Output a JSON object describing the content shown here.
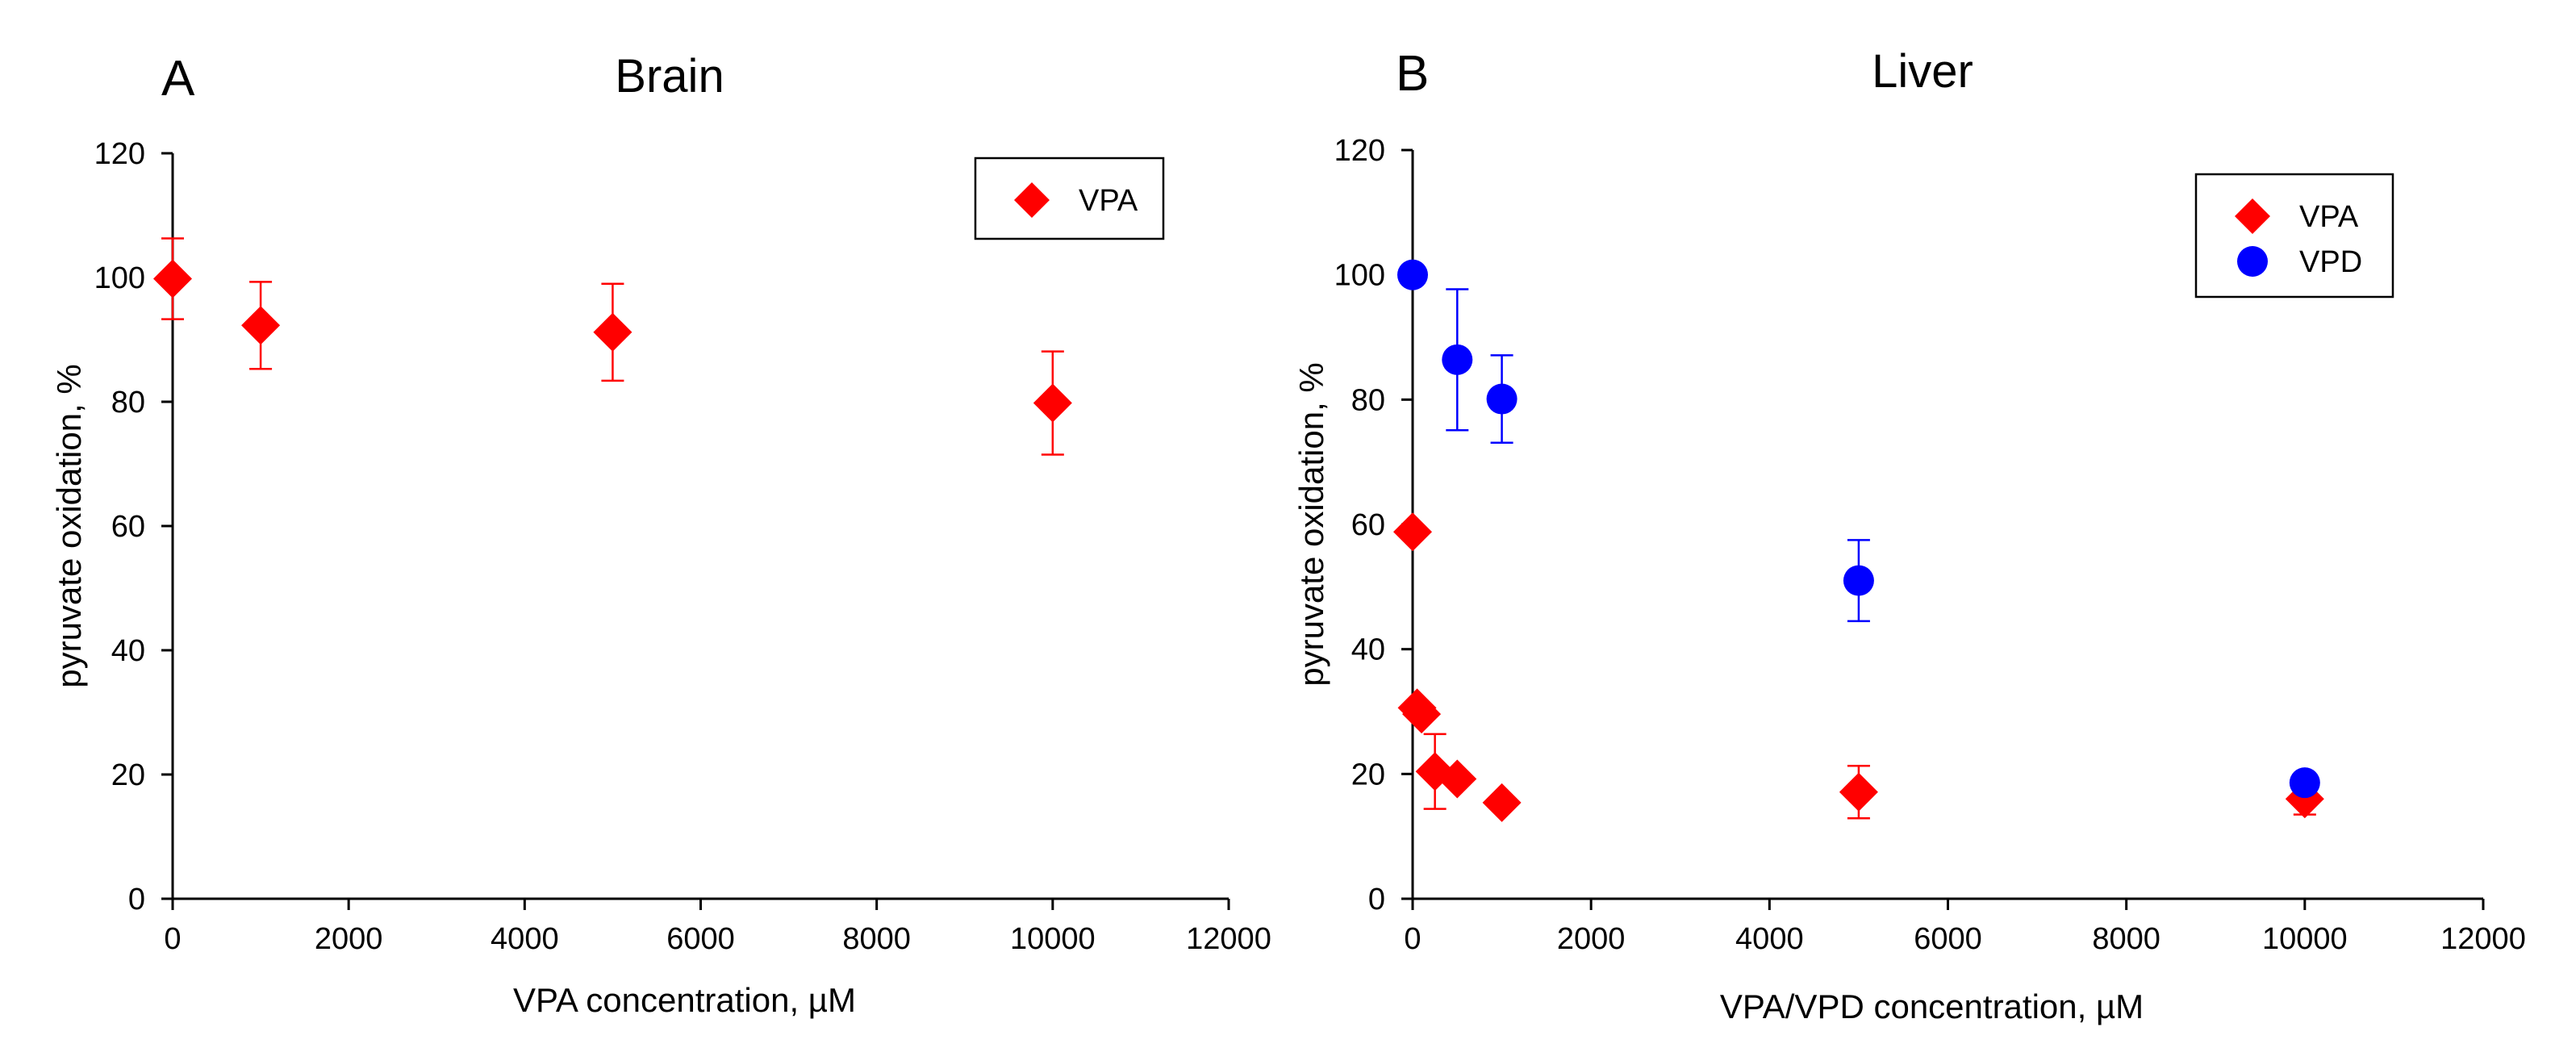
{
  "chart_data": [
    {
      "type": "scatter",
      "panel_letter": "A",
      "title": "Brain",
      "xlabel": "VPA concentration, µM",
      "ylabel": "pyruvate oxidation, %",
      "xlim": [
        0,
        12000
      ],
      "ylim": [
        0,
        120
      ],
      "xticks": [
        0,
        2000,
        4000,
        6000,
        8000,
        10000,
        12000
      ],
      "yticks": [
        0,
        20,
        40,
        60,
        80,
        100,
        120
      ],
      "legend_position": "top-right",
      "series": [
        {
          "name": "VPA",
          "marker": "diamond",
          "color": "#ff0000",
          "points": [
            {
              "x": 0,
              "y": 99.8,
              "err": 6.5
            },
            {
              "x": 1000,
              "y": 92.3,
              "err": 7.0
            },
            {
              "x": 5000,
              "y": 91.2,
              "err": 7.8
            },
            {
              "x": 10000,
              "y": 79.8,
              "err": 8.3
            }
          ]
        }
      ]
    },
    {
      "type": "scatter",
      "panel_letter": "B",
      "title": "Liver",
      "xlabel": "VPA/VPD concentration, µM",
      "ylabel": "pyruvate oxidation, %",
      "xlim": [
        0,
        12000
      ],
      "ylim": [
        0,
        120
      ],
      "xticks": [
        0,
        2000,
        4000,
        6000,
        8000,
        10000,
        12000
      ],
      "yticks": [
        0,
        20,
        40,
        60,
        80,
        100,
        120
      ],
      "legend_position": "top-right",
      "series": [
        {
          "name": "VPA",
          "marker": "diamond",
          "color": "#ff0000",
          "points": [
            {
              "x": 0,
              "y": 58.8,
              "err": 0
            },
            {
              "x": 50,
              "y": 30.6,
              "err": 0
            },
            {
              "x": 100,
              "y": 29.6,
              "err": 0
            },
            {
              "x": 250,
              "y": 20.4,
              "err": 6.0
            },
            {
              "x": 500,
              "y": 19.2,
              "err": 0
            },
            {
              "x": 1000,
              "y": 15.4,
              "err": 0
            },
            {
              "x": 5000,
              "y": 17.1,
              "err": 4.2
            },
            {
              "x": 10000,
              "y": 16.0,
              "err": 2.5
            }
          ]
        },
        {
          "name": "VPD",
          "marker": "circle",
          "color": "#0000ff",
          "points": [
            {
              "x": 0,
              "y": 100.0,
              "err": 0
            },
            {
              "x": 500,
              "y": 86.4,
              "err": 11.3
            },
            {
              "x": 1000,
              "y": 80.1,
              "err": 7.0
            },
            {
              "x": 5000,
              "y": 51.0,
              "err": 6.5
            },
            {
              "x": 10000,
              "y": 18.6,
              "err": 0
            }
          ]
        }
      ]
    }
  ]
}
